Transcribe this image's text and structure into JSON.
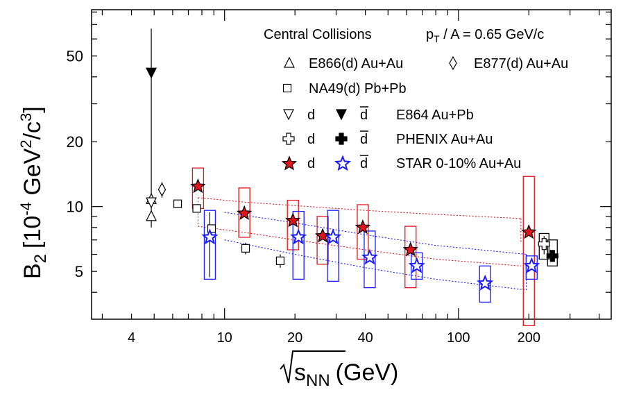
{
  "chart_data": {
    "type": "scatter",
    "xscale": "log",
    "yscale": "log",
    "xlim": [
      2.7,
      450
    ],
    "ylim": [
      3.0,
      82
    ],
    "xlabel_main": "s",
    "xlabel_sub": "NN",
    "xlabel_unit": "(GeV)",
    "ylabel_main": "B",
    "ylabel_sub": "2",
    "ylabel_open": "[10",
    "ylabel_exp1": "-4",
    "ylabel_mid": " GeV",
    "ylabel_exp2": "2",
    "ylabel_div": "/c",
    "ylabel_exp3": "3",
    "ylabel_close": "]",
    "x_tick_labels": [
      {
        "value": 4,
        "label": "4"
      },
      {
        "value": 10,
        "label": "10"
      },
      {
        "value": 20,
        "label": "20"
      },
      {
        "value": 40,
        "label": "40"
      },
      {
        "value": 100,
        "label": "100"
      },
      {
        "value": 200,
        "label": "200"
      }
    ],
    "y_tick_labels": [
      {
        "value": 5,
        "label": "5"
      },
      {
        "value": 10,
        "label": "10"
      },
      {
        "value": 20,
        "label": "20"
      },
      {
        "value": 50,
        "label": "50"
      }
    ],
    "legend_title_left": "Central Collisions",
    "legend_title_right": {
      "p": "p",
      "sub": "T",
      "rest": " / A = 0.65 GeV/c"
    },
    "legend": {
      "e866": "E866(d) Au+Au",
      "e877": "E877(d) Au+Au",
      "na49": "NA49(d) Pb+Pb",
      "d": "d",
      "dbar": "d",
      "e864": "E864 Au+Pb",
      "phenix": "PHENIX Au+Au",
      "star": "STAR 0-10% Au+Au"
    },
    "colors": {
      "star_d": "#e0141b",
      "star_dbar": "#1a1aff",
      "marker_fill": "#ffffff",
      "axis": "#000000"
    },
    "series": [
      {
        "name": "E866(d) Au+Au",
        "marker": "triangle-up-open",
        "points": [
          {
            "x": 4.86,
            "y": 9.0
          },
          {
            "x": 4.86,
            "y": 10.8
          }
        ]
      },
      {
        "name": "E877(d) Au+Au",
        "marker": "diamond-open",
        "points": [
          {
            "x": 5.4,
            "y": 12.0,
            "err": [
              11.0,
              13.0
            ]
          }
        ]
      },
      {
        "name": "NA49(d) Pb+Pb",
        "marker": "square-open",
        "points": [
          {
            "x": 6.3,
            "y": 10.3
          },
          {
            "x": 7.6,
            "y": 9.8
          },
          {
            "x": 8.8,
            "y": 7.9
          },
          {
            "x": 12.3,
            "y": 6.4,
            "err": [
              6.0,
              6.8
            ]
          },
          {
            "x": 17.3,
            "y": 5.6,
            "err": [
              5.2,
              6.0
            ]
          }
        ]
      },
      {
        "name": "E864 Au+Pb d",
        "marker": "triangle-down-open",
        "points": [
          {
            "x": 4.86,
            "y": 10.5
          }
        ]
      },
      {
        "name": "E864 Au+Pb dbar",
        "marker": "triangle-down-filled",
        "points": [
          {
            "x": 4.86,
            "y": 42.0,
            "err": [
              8.0,
              67.0
            ]
          }
        ]
      },
      {
        "name": "PHENIX Au+Au d",
        "marker": "cross-open",
        "points": [
          {
            "x": 200,
            "y": 6.7,
            "err": [
              6.0,
              7.3
            ],
            "sys": [
              5.7,
              7.5
            ]
          }
        ]
      },
      {
        "name": "PHENIX Au+Au dbar",
        "marker": "cross-filled",
        "points": [
          {
            "x": 200,
            "y": 5.9,
            "sys": [
              5.3,
              7.0
            ]
          }
        ]
      },
      {
        "name": "STAR 0-10% Au+Au d",
        "marker": "star-filled",
        "points": [
          {
            "x": 7.7,
            "y": 12.4,
            "sys": [
              9.8,
              15.1
            ]
          },
          {
            "x": 11.5,
            "y": 9.3,
            "sys": [
              7.2,
              12.2
            ]
          },
          {
            "x": 19.6,
            "y": 8.6,
            "sys": [
              6.3,
              10.7
            ]
          },
          {
            "x": 27,
            "y": 7.3,
            "sys": [
              5.4,
              9.0
            ]
          },
          {
            "x": 39,
            "y": 8.0,
            "sys": [
              5.7,
              10.2
            ]
          },
          {
            "x": 62.4,
            "y": 6.3,
            "sys": [
              4.2,
              8.1
            ]
          },
          {
            "x": 200,
            "y": 7.6,
            "sys": [
              2.8,
              13.8
            ]
          }
        ]
      },
      {
        "name": "STAR 0-10% Au+Au dbar",
        "marker": "star-open",
        "points": [
          {
            "x": 7.7,
            "y": 7.2,
            "err": [
              4.7,
              9.4
            ],
            "sys": [
              4.6,
              9.6
            ]
          },
          {
            "x": 19.6,
            "y": 7.2,
            "sys": [
              4.6,
              9.5
            ]
          },
          {
            "x": 27,
            "y": 7.2,
            "sys": [
              4.5,
              9.6
            ]
          },
          {
            "x": 39,
            "y": 5.8,
            "sys": [
              4.2,
              7.7
            ]
          },
          {
            "x": 62.4,
            "y": 5.3,
            "sys": [
              4.6,
              6.1
            ]
          },
          {
            "x": 130,
            "y": 4.4,
            "sys": [
              3.6,
              5.3
            ]
          },
          {
            "x": 200,
            "y": 5.3,
            "sys": [
              4.6,
              5.9
            ]
          }
        ]
      }
    ]
  }
}
